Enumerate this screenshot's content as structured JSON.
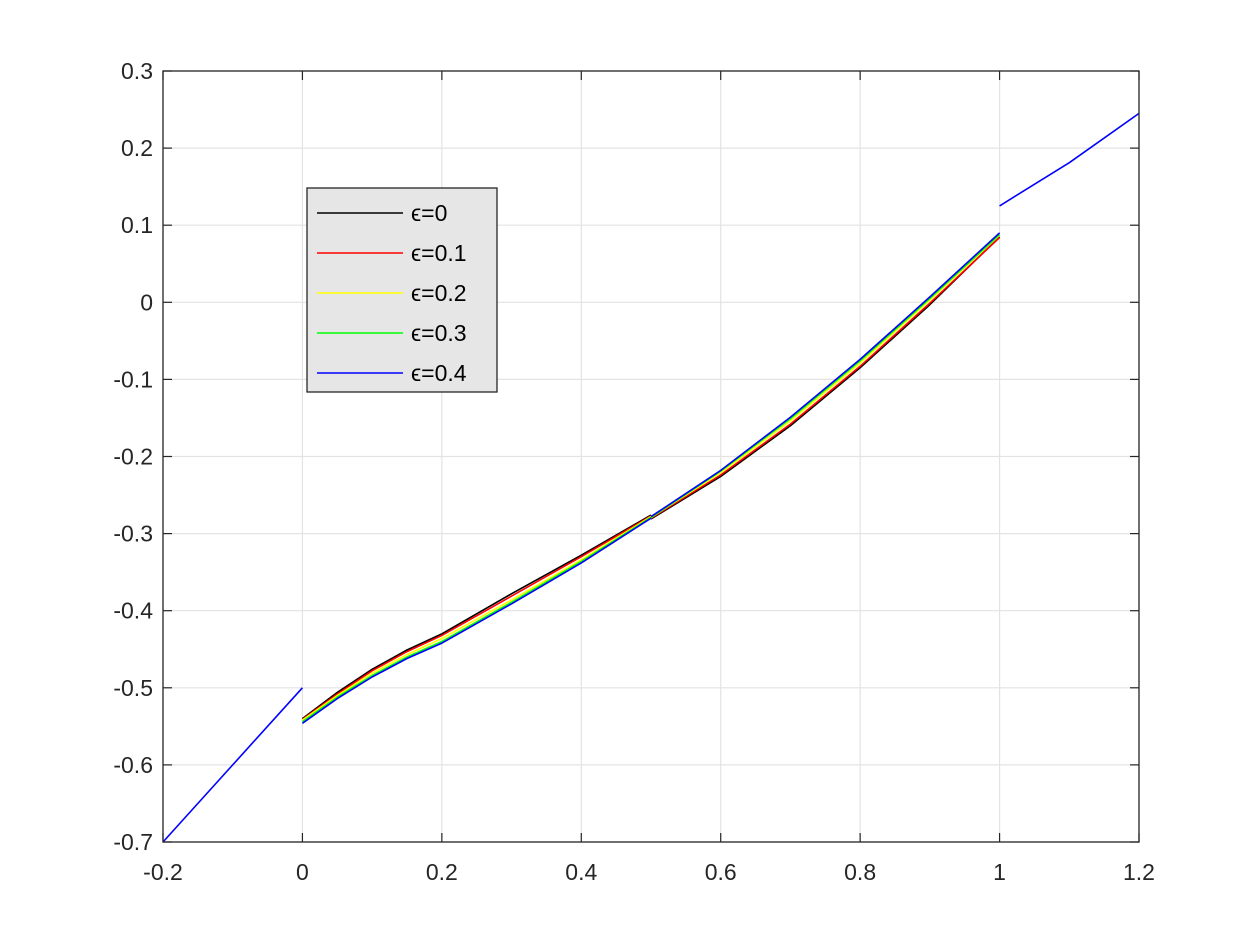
{
  "chart_data": {
    "type": "line",
    "title": "",
    "xlabel": "",
    "ylabel": "",
    "xlim": [
      -0.2,
      1.2
    ],
    "ylim": [
      -0.7,
      0.3
    ],
    "xticks": [
      -0.2,
      0,
      0.2,
      0.4,
      0.6,
      0.8,
      1,
      1.2
    ],
    "xtick_labels": [
      "-0.2",
      "0",
      "0.2",
      "0.4",
      "0.6",
      "0.8",
      "1",
      "1.2"
    ],
    "yticks": [
      0.3,
      0.2,
      0.1,
      0,
      -0.1,
      -0.2,
      -0.3,
      -0.4,
      -0.5,
      -0.6,
      -0.7
    ],
    "ytick_labels": [
      "0.3",
      "0.2",
      "0.1",
      "0",
      "-0.1",
      "-0.2",
      "-0.3",
      "-0.4",
      "-0.5",
      "-0.6",
      "-0.7"
    ],
    "grid": true,
    "legend_position": "upper-left",
    "series": [
      {
        "name": "ϵ=0",
        "color": "#000000",
        "segments": [
          [
            [
              0,
              -0.54
            ],
            [
              0.05,
              -0.506
            ],
            [
              0.1,
              -0.476
            ],
            [
              0.15,
              -0.451
            ],
            [
              0.2,
              -0.43
            ],
            [
              0.3,
              -0.378
            ],
            [
              0.4,
              -0.328
            ],
            [
              0.5,
              -0.276
            ]
          ],
          [
            [
              0.5,
              -0.281
            ],
            [
              0.6,
              -0.226
            ],
            [
              0.7,
              -0.16
            ],
            [
              0.8,
              -0.085
            ],
            [
              0.9,
              -0.003
            ],
            [
              1.0,
              0.085
            ]
          ]
        ]
      },
      {
        "name": "ϵ=0.1",
        "color": "#ff0000",
        "segments": [
          [
            [
              0,
              -0.541
            ],
            [
              0.05,
              -0.508
            ],
            [
              0.1,
              -0.478
            ],
            [
              0.15,
              -0.453
            ],
            [
              0.2,
              -0.432
            ],
            [
              0.3,
              -0.381
            ],
            [
              0.4,
              -0.33
            ],
            [
              0.5,
              -0.277
            ]
          ],
          [
            [
              0.5,
              -0.28
            ],
            [
              0.6,
              -0.224
            ],
            [
              0.7,
              -0.158
            ],
            [
              0.8,
              -0.083
            ],
            [
              0.9,
              -0.001
            ],
            [
              1.0,
              0.084
            ]
          ]
        ]
      },
      {
        "name": "ϵ=0.2",
        "color": "#ffff00",
        "segments": [
          [
            [
              0,
              -0.542
            ],
            [
              0.05,
              -0.51
            ],
            [
              0.1,
              -0.481
            ],
            [
              0.15,
              -0.457
            ],
            [
              0.2,
              -0.436
            ],
            [
              0.3,
              -0.386
            ],
            [
              0.4,
              -0.334
            ],
            [
              0.5,
              -0.278
            ]
          ],
          [
            [
              0.5,
              -0.279
            ],
            [
              0.6,
              -0.221
            ],
            [
              0.7,
              -0.154
            ],
            [
              0.8,
              -0.079
            ],
            [
              0.9,
              0.003
            ],
            [
              1.0,
              0.087
            ]
          ]
        ]
      },
      {
        "name": "ϵ=0.3",
        "color": "#00ff00",
        "segments": [
          [
            [
              0,
              -0.544
            ],
            [
              0.05,
              -0.512
            ],
            [
              0.1,
              -0.484
            ],
            [
              0.15,
              -0.46
            ],
            [
              0.2,
              -0.44
            ],
            [
              0.3,
              -0.389
            ],
            [
              0.4,
              -0.336
            ],
            [
              0.5,
              -0.279
            ]
          ],
          [
            [
              0.5,
              -0.279
            ],
            [
              0.6,
              -0.219
            ],
            [
              0.7,
              -0.151
            ],
            [
              0.8,
              -0.076
            ],
            [
              0.9,
              0.005
            ],
            [
              1.0,
              0.088
            ]
          ]
        ]
      },
      {
        "name": "ϵ=0.4",
        "color": "#0000ff",
        "segments": [
          [
            [
              -0.2,
              -0.7
            ],
            [
              -0.1,
              -0.6
            ],
            [
              0,
              -0.5
            ]
          ],
          [
            [
              0,
              -0.546
            ],
            [
              0.05,
              -0.514
            ],
            [
              0.1,
              -0.486
            ],
            [
              0.15,
              -0.462
            ],
            [
              0.2,
              -0.442
            ],
            [
              0.3,
              -0.391
            ],
            [
              0.4,
              -0.338
            ],
            [
              0.5,
              -0.28
            ]
          ],
          [
            [
              0.5,
              -0.278
            ],
            [
              0.6,
              -0.218
            ],
            [
              0.7,
              -0.149
            ],
            [
              0.8,
              -0.074
            ],
            [
              0.9,
              0.007
            ],
            [
              1.0,
              0.09
            ]
          ],
          [
            [
              1.0,
              0.125
            ],
            [
              1.1,
              0.181
            ],
            [
              1.2,
              0.245
            ]
          ]
        ]
      }
    ]
  }
}
